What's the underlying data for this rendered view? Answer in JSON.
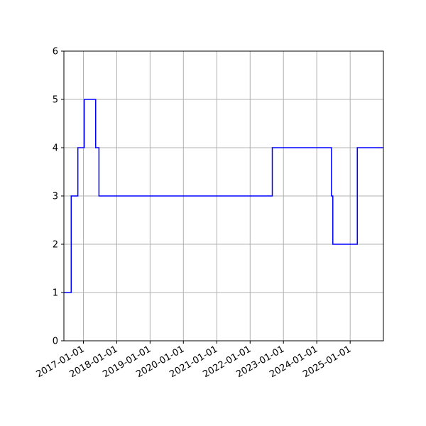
{
  "chart_data": {
    "type": "line",
    "title": "",
    "xlabel": "",
    "ylabel": "",
    "x_axis": "date",
    "xlim": [
      "2016-06-01",
      "2025-12-31"
    ],
    "ylim": [
      0,
      6
    ],
    "grid": true,
    "line_color": "#0000ff",
    "line_style": "step",
    "x_tick_labels": [
      "2017-01-01",
      "2018-01-01",
      "2019-01-01",
      "2020-01-01",
      "2021-01-01",
      "2022-01-01",
      "2023-01-01",
      "2024-01-01",
      "2025-01-01"
    ],
    "y_tick_labels": [
      "0",
      "1",
      "2",
      "3",
      "4",
      "5",
      "6"
    ],
    "series": [
      {
        "points": [
          {
            "x": "2016-06-01",
            "y": 1
          },
          {
            "x": "2016-08-20",
            "y": 3
          },
          {
            "x": "2016-11-01",
            "y": 4
          },
          {
            "x": "2017-01-10",
            "y": 5
          },
          {
            "x": "2017-05-15",
            "y": 4
          },
          {
            "x": "2017-06-20",
            "y": 3
          },
          {
            "x": "2022-09-01",
            "y": 4
          },
          {
            "x": "2024-06-10",
            "y": 3
          },
          {
            "x": "2024-06-25",
            "y": 2
          },
          {
            "x": "2025-03-20",
            "y": 4
          },
          {
            "x": "2025-12-31",
            "y": 4
          }
        ]
      }
    ]
  }
}
